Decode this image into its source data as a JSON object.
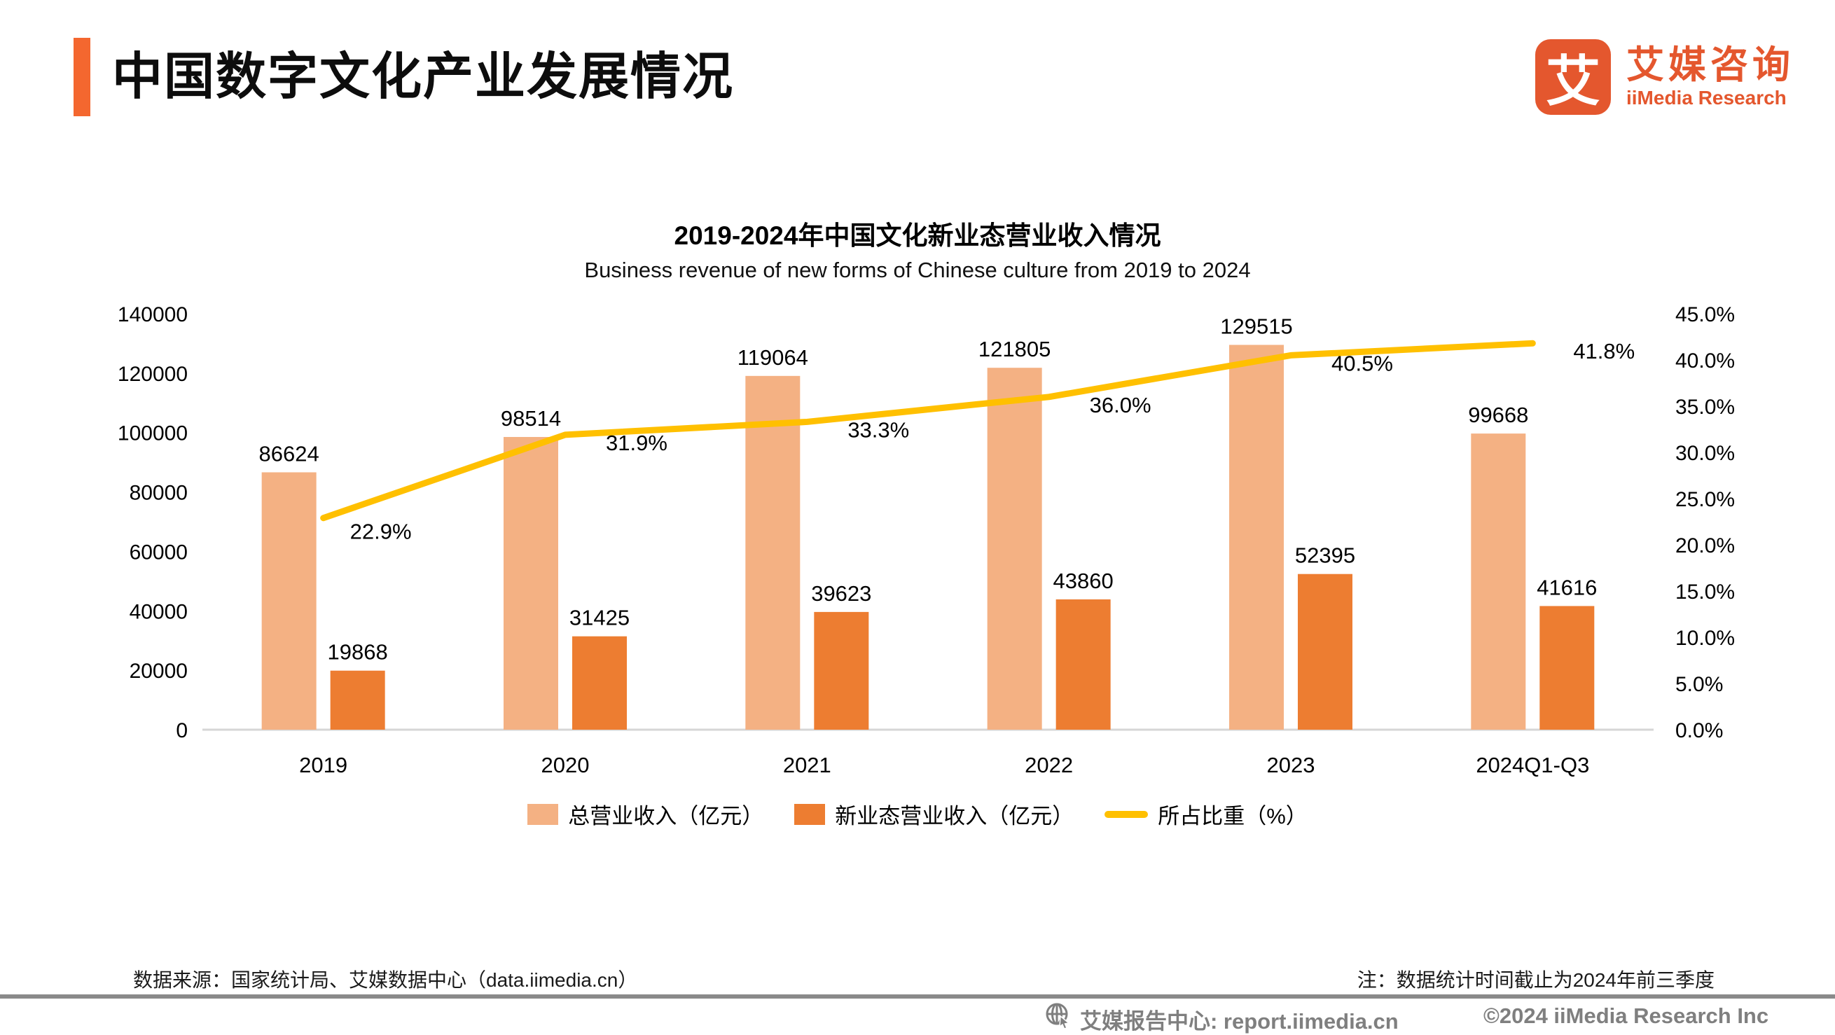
{
  "header": {
    "title": "中国数字文化产业发展情况",
    "accent_color": "#F4672F"
  },
  "logo": {
    "mark": "艾",
    "name_cn": "艾媒咨询",
    "name_en": "iiMedia Research",
    "color": "#E4572E"
  },
  "chart": {
    "title": "2019-2024年中国文化新业态营业收入情况",
    "subtitle": "Business revenue of new forms of Chinese culture from 2019 to 2024"
  },
  "chart_data": {
    "type": "bar",
    "categories": [
      "2019",
      "2020",
      "2021",
      "2022",
      "2023",
      "2024Q1-Q3"
    ],
    "series": [
      {
        "name": "总营业收入（亿元）",
        "type": "bar",
        "color": "#F4B183",
        "values": [
          86624,
          98514,
          119064,
          121805,
          129515,
          99668
        ],
        "value_labels": [
          "86624",
          "98514",
          "119064",
          "121805",
          "129515",
          "99668"
        ]
      },
      {
        "name": "新业态营业收入（亿元）",
        "type": "bar",
        "color": "#ED7D31",
        "values": [
          19868,
          31425,
          39623,
          43860,
          52395,
          41616
        ],
        "value_labels": [
          "19868",
          "31425",
          "39623",
          "43860",
          "52395",
          "41616"
        ]
      },
      {
        "name": "所占比重（%）",
        "type": "line",
        "color": "#FFC000",
        "values": [
          22.9,
          31.9,
          33.3,
          36.0,
          40.5,
          41.8
        ],
        "value_labels": [
          "22.9%",
          "31.9%",
          "33.3%",
          "36.0%",
          "40.5%",
          "41.8%"
        ]
      }
    ],
    "y_left": {
      "min": 0,
      "max": 140000,
      "step": 20000,
      "ticks": [
        "140000",
        "120000",
        "100000",
        "80000",
        "60000",
        "40000",
        "20000",
        "0"
      ]
    },
    "y_right": {
      "min": 0,
      "max": 45,
      "step": 5,
      "ticks": [
        "45.0%",
        "40.0%",
        "35.0%",
        "30.0%",
        "25.0%",
        "20.0%",
        "15.0%",
        "10.0%",
        "5.0%",
        "0.0%"
      ]
    },
    "grid": false,
    "legend_position": "bottom",
    "axis_line_color": "#D6D6D6",
    "label_color": "#000000"
  },
  "footer": {
    "source": "数据来源：国家统计局、艾媒数据中心（data.iimedia.cn）",
    "note": "注：数据统计时间截止为2024年前三季度"
  },
  "bottombar": {
    "site_label": "艾媒报告中心:  report.iimedia.cn",
    "copyright": "©2024  iiMedia Research  Inc"
  }
}
